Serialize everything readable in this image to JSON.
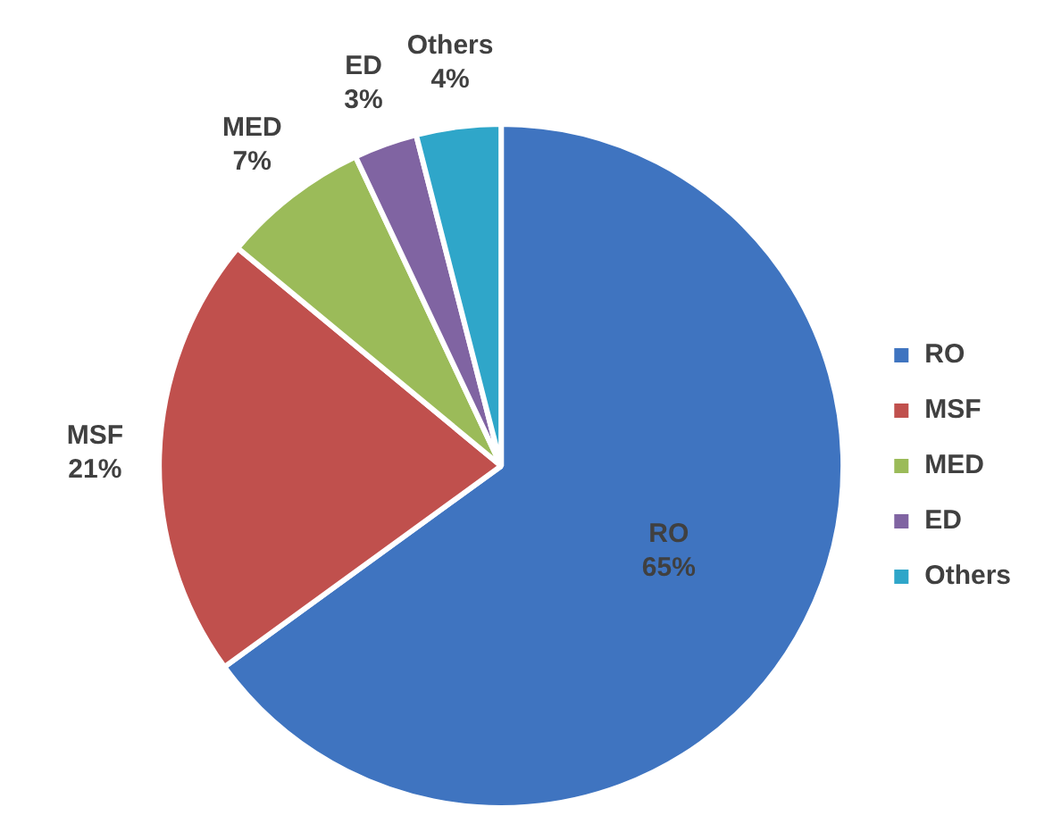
{
  "chart_data": {
    "type": "pie",
    "categories": [
      "RO",
      "MSF",
      "MED",
      "ED",
      "Others"
    ],
    "values": [
      65,
      21,
      7,
      3,
      4
    ],
    "colors": [
      "#3f74c0",
      "#c0504d",
      "#9bbb59",
      "#8064a2",
      "#2fa6c9"
    ],
    "value_labels": [
      "65%",
      "21%",
      "7%",
      "3%",
      "4%"
    ],
    "legend": "right"
  }
}
